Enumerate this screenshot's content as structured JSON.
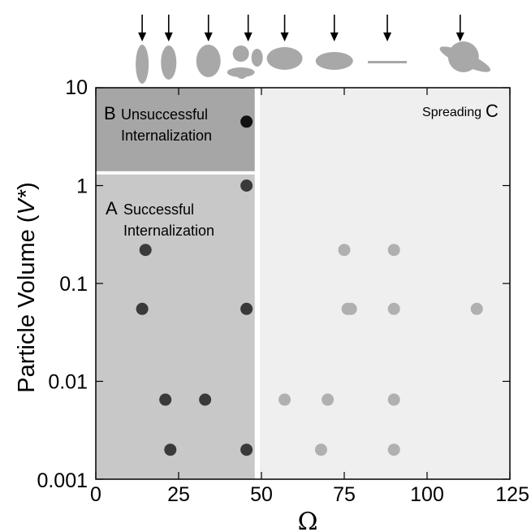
{
  "chart_data": {
    "type": "scatter",
    "title": "",
    "xlabel": "Ω",
    "ylabel_main": "Particle Volume (",
    "ylabel_italic": "V*",
    "ylabel_end": ")",
    "xlim": [
      0,
      125
    ],
    "ylim": [
      0.001,
      10
    ],
    "yscale": "log",
    "x_ticks": [
      0,
      25,
      50,
      75,
      100,
      125
    ],
    "x_tick_labels": [
      "0",
      "25",
      "50",
      "75",
      "100",
      "125"
    ],
    "y_ticks": [
      0.001,
      0.01,
      0.1,
      1,
      10
    ],
    "y_tick_labels": [
      "0.001",
      "0.01",
      "0.1",
      "1",
      "10"
    ],
    "grid": false,
    "regions": [
      {
        "letter": "A",
        "line1": "Successful",
        "line2": "Internalization",
        "x_range": [
          0,
          48
        ],
        "y_range": [
          0.001,
          1.35
        ],
        "color": "#c8c8c8"
      },
      {
        "letter": "B",
        "line1": "Unsuccessful",
        "line2": "Internalization",
        "x_range": [
          0,
          48
        ],
        "y_range": [
          1.35,
          10
        ],
        "color": "#a6a6a6"
      },
      {
        "letter": "C",
        "line1": "Spreading",
        "line2": "",
        "x_range": [
          49.5,
          125
        ],
        "y_range": [
          0.001,
          10
        ],
        "color": "#efefef"
      }
    ],
    "series": [
      {
        "color": "#3a3a3a",
        "points": [
          [
            15,
            0.22
          ],
          [
            14,
            0.055
          ],
          [
            21,
            0.0065
          ],
          [
            33,
            0.0065
          ],
          [
            22.5,
            0.002
          ],
          [
            45.5,
            1.0
          ],
          [
            45.5,
            0.055
          ],
          [
            45.5,
            0.002
          ]
        ]
      },
      {
        "color": "#111111",
        "points": [
          [
            45.5,
            4.5
          ]
        ]
      },
      {
        "color": "#b0b0b0",
        "points": [
          [
            75,
            0.22
          ],
          [
            90,
            0.22
          ],
          [
            76,
            0.055
          ],
          [
            77,
            0.055
          ],
          [
            90,
            0.055
          ],
          [
            115,
            0.055
          ],
          [
            57,
            0.0065
          ],
          [
            70,
            0.0065
          ],
          [
            90,
            0.0065
          ],
          [
            68,
            0.002
          ],
          [
            90,
            0.002
          ]
        ]
      }
    ],
    "shape_icons": [
      "narrow-vertical-ellipse",
      "vertical-ellipse",
      "large-vertical-ellipse",
      "cluster-of-shapes",
      "horizontal-ellipse",
      "flat-horizontal-ellipse",
      "thin-rod",
      "ringed-sphere"
    ],
    "arrow_x": [
      14,
      22,
      34,
      46,
      57,
      72,
      88,
      110
    ],
    "colors": {
      "frame": "#000000",
      "divider": "#ffffff",
      "icon": "#a8a8a8"
    }
  }
}
